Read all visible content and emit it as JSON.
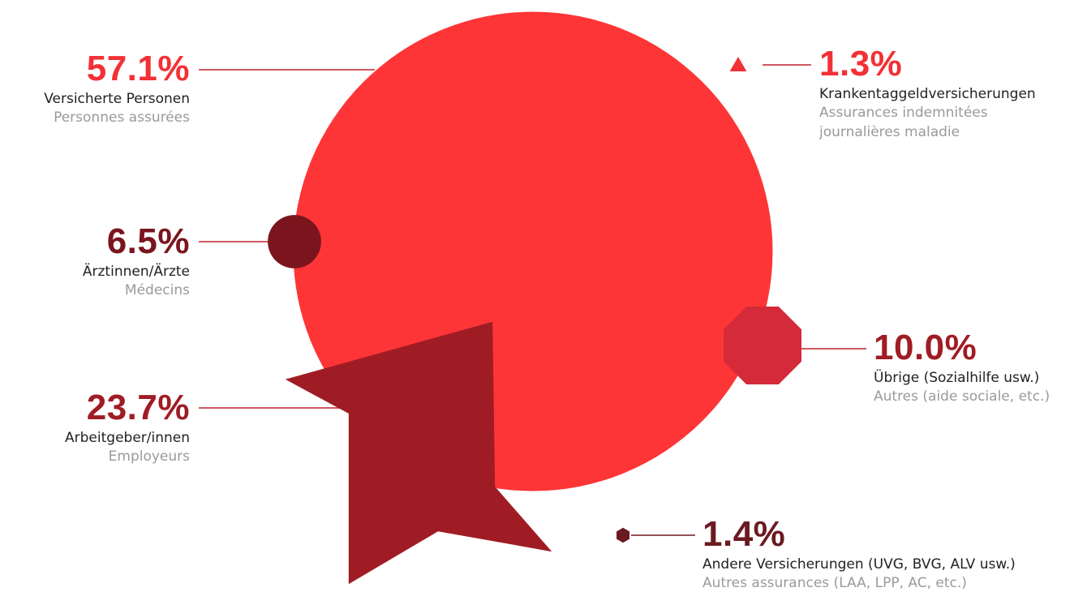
{
  "chart_data": {
    "type": "pie",
    "title": "",
    "unit": "%",
    "slices": [
      {
        "value": 57.1,
        "label_de": "Versicherte Personen",
        "label_fr": "Personnes assurées",
        "color": "#fe3537",
        "shape": "circle"
      },
      {
        "value": 1.3,
        "label_de": "Krankentaggeldversicherungen",
        "label_fr": "Assurances indemnitées journalières maladie",
        "color": "#f23136",
        "shape": "triangle"
      },
      {
        "value": 6.5,
        "label_de": "Ärztinnen/Ärzte",
        "label_fr": "Médecins",
        "color": "#7a151e",
        "shape": "circle"
      },
      {
        "value": 10.0,
        "label_de": "Übrige (Sozialhilfe usw.)",
        "label_fr": "Autres (aide sociale, etc.)",
        "color": "#d42a3a",
        "shape": "octagon"
      },
      {
        "value": 23.7,
        "label_de": "Arbeitgeber/innen",
        "label_fr": "Employeurs",
        "color": "#a01c24",
        "shape": "star"
      },
      {
        "value": 1.4,
        "label_de": "Andere Versicherungen (UVG, BVG, ALV usw.)",
        "label_fr": "Autres assurances (LAA, LPP, AC, etc.)",
        "color": "#6b1a21",
        "shape": "hexagon"
      }
    ]
  },
  "labels": {
    "versicherte": {
      "pct": "57.1%",
      "de": "Versicherte Personen",
      "fr": "Personnes assurées"
    },
    "krankentaggeld": {
      "pct": "1.3%",
      "de": "Krankentaggeldversicherungen",
      "fr1": "Assurances indemnitées",
      "fr2": "journalières maladie"
    },
    "aerzte": {
      "pct": "6.5%",
      "de": "Ärztinnen/Ärzte",
      "fr": "Médecins"
    },
    "uebrige": {
      "pct": "10.0%",
      "de": "Übrige (Sozialhilfe usw.)",
      "fr": "Autres (aide sociale, etc.)"
    },
    "arbeitgeber": {
      "pct": "23.7%",
      "de": "Arbeitgeber/innen",
      "fr": "Employeurs"
    },
    "andere": {
      "pct": "1.4%",
      "de": "Andere Versicherungen (UVG, BVG, ALV usw.)",
      "fr": "Autres assurances (LAA, LPP, AC, etc.)"
    }
  },
  "colors": {
    "accent_red": "#f23136",
    "dark_red": "#7a151e",
    "mid_red": "#a01c24",
    "connector": "#c0202c",
    "secondary_text": "#9a9a9a"
  }
}
